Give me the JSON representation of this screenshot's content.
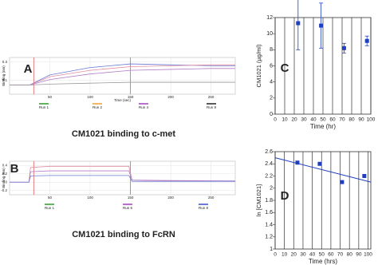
{
  "chart_data": [
    {
      "type": "line",
      "label": "A",
      "title": "CM1021 binding to c-met",
      "ylabel": "Binding (nm)",
      "xlabel": "Time (sec)",
      "x": [
        0,
        25,
        50,
        100,
        150,
        200,
        250,
        280
      ],
      "series": [
        {
          "color": "#6a7bd6",
          "values": [
            0.05,
            0.05,
            0.16,
            0.24,
            0.28,
            0.27,
            0.26,
            0.26
          ]
        },
        {
          "color": "#e08aa0",
          "values": [
            0.05,
            0.05,
            0.14,
            0.21,
            0.25,
            0.26,
            0.27,
            0.27
          ]
        },
        {
          "color": "#b07cc6",
          "values": [
            0.05,
            0.05,
            0.11,
            0.17,
            0.21,
            0.22,
            0.23,
            0.23
          ]
        },
        {
          "color": "#999999",
          "values": [
            0.05,
            0.05,
            0.06,
            0.07,
            0.08,
            0.08,
            0.08,
            0.08
          ]
        }
      ],
      "event_lines": [
        30,
        150
      ],
      "event_color": "#e06060",
      "xlim": [
        0,
        280
      ],
      "xticks": [
        50,
        100,
        150,
        200,
        250
      ],
      "ylim": [
        -0.05,
        0.35
      ],
      "yticks": [
        0.1,
        0.3
      ],
      "runs": [
        {
          "label": "Run 1",
          "color": "#2a9a2a"
        },
        {
          "label": "Run 2",
          "color": "#f0a030"
        },
        {
          "label": "Run 4",
          "color": "#a040c0"
        },
        {
          "label": "Run 8",
          "color": "#222222"
        }
      ]
    },
    {
      "type": "line",
      "label": "B",
      "title": "CM1021 binding to FcRN",
      "ylabel": "Binding (nm)",
      "x": [
        0,
        24,
        26,
        50,
        148,
        152,
        200,
        280
      ],
      "series": [
        {
          "color": "#e08aa0",
          "values": [
            0,
            0,
            0.35,
            0.38,
            0.38,
            0.05,
            0.03,
            0.02
          ]
        },
        {
          "color": "#b07cc6",
          "values": [
            0,
            0,
            0.25,
            0.27,
            0.27,
            0.05,
            0.04,
            0.03
          ]
        },
        {
          "color": "#6a7bd6",
          "values": [
            0,
            0,
            0.15,
            0.16,
            0.16,
            0.02,
            0.02,
            0.02
          ]
        }
      ],
      "event_lines": [
        30,
        150
      ],
      "event_color": "#e06060",
      "xlim": [
        0,
        280
      ],
      "xticks": [
        50,
        100,
        150,
        200,
        250
      ],
      "ylim": [
        -0.3,
        0.5
      ],
      "yticks": [
        -0.2,
        0,
        0.2,
        0.4
      ],
      "runs": [
        {
          "label": "Run 1",
          "color": "#2a9a2a"
        },
        {
          "label": "Run 6",
          "color": "#a040c0"
        },
        {
          "label": "Run 8",
          "color": "#3050d0"
        }
      ]
    },
    {
      "type": "scatter",
      "label": "C",
      "ylabel": "CM1021 (µg/ml)",
      "xlabel": "Time (hr)",
      "color": "#1f3fbf",
      "x": [
        24,
        48,
        72,
        96
      ],
      "values": [
        11.3,
        11,
        8.2,
        9.1
      ],
      "errors": [
        3.3,
        2.8,
        0.6,
        0.6
      ],
      "xlim": [
        0,
        100
      ],
      "xticks": [
        0,
        10,
        20,
        30,
        40,
        50,
        60,
        70,
        80,
        90,
        100
      ],
      "ylim": [
        0,
        12
      ],
      "yticks": [
        0,
        2,
        4,
        6,
        8,
        10,
        12
      ],
      "grid": "x"
    },
    {
      "type": "scatter",
      "label": "D",
      "ylabel": "ln [CM1021]",
      "xlabel": "Time (hrs)",
      "color": "#1f3fbf",
      "x": [
        24,
        48,
        72,
        96
      ],
      "values": [
        2.42,
        2.4,
        2.1,
        2.2
      ],
      "trendline": {
        "x": [
          0,
          103
        ],
        "values": [
          2.5,
          2.1
        ]
      },
      "xlim": [
        0,
        103
      ],
      "xticks": [
        0,
        10,
        20,
        30,
        40,
        50,
        60,
        70,
        80,
        90,
        100
      ],
      "ylim": [
        1,
        2.6
      ],
      "yticks": [
        1,
        1.2,
        1.4,
        1.6,
        1.8,
        2,
        2.2,
        2.4,
        2.6
      ],
      "grid": "x"
    }
  ]
}
